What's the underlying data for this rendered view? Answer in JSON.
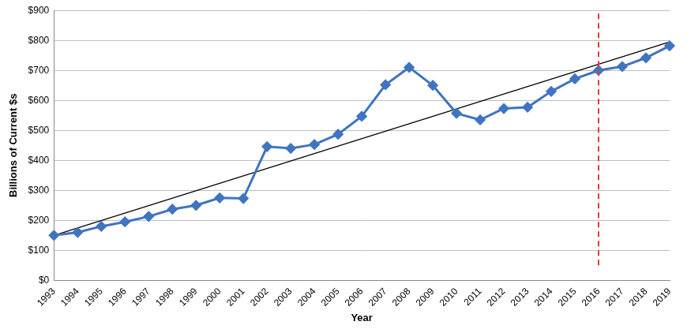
{
  "chart_data": {
    "type": "line",
    "x_label": "Year",
    "y_label": "Billions of Current $s",
    "categories": [
      "1993",
      "1994",
      "1995",
      "1996",
      "1997",
      "1998",
      "1999",
      "2000",
      "2001",
      "2002",
      "2003",
      "2004",
      "2005",
      "2006",
      "2007",
      "2008",
      "2009",
      "2010",
      "2011",
      "2012",
      "2013",
      "2014",
      "2015",
      "2016",
      "2017",
      "2018",
      "2019"
    ],
    "series": [
      {
        "color": "#3F74C0",
        "marker": "diamond",
        "line_style": "solid",
        "values": [
          150,
          160,
          180,
          195,
          213,
          237,
          250,
          275,
          273,
          446,
          440,
          453,
          487,
          547,
          652,
          710,
          650,
          557,
          535,
          573,
          577,
          630,
          672,
          700,
          713,
          742,
          782
        ]
      },
      {
        "color": "#000000",
        "marker": "none",
        "line_style": "solid",
        "values": [
          150,
          null,
          null,
          null,
          null,
          null,
          null,
          null,
          null,
          null,
          null,
          null,
          null,
          null,
          null,
          null,
          null,
          null,
          null,
          null,
          null,
          null,
          null,
          null,
          null,
          null,
          795
        ]
      }
    ],
    "ylim": [
      0,
      900
    ],
    "yticks": [
      {
        "value": 0,
        "label": "$0"
      },
      {
        "value": 100,
        "label": "$100"
      },
      {
        "value": 200,
        "label": "$200"
      },
      {
        "value": 300,
        "label": "$300"
      },
      {
        "value": 400,
        "label": "$400"
      },
      {
        "value": 500,
        "label": "$500"
      },
      {
        "value": 600,
        "label": "$600"
      },
      {
        "value": 700,
        "label": "$700"
      },
      {
        "value": 800,
        "label": "$800"
      },
      {
        "value": 900,
        "label": "$900"
      }
    ],
    "grid": true,
    "annotations": [
      {
        "type": "vline",
        "x": "2016",
        "y_from": 50,
        "y_to": 900,
        "color": "#E03A30",
        "line_style": "dashed"
      }
    ]
  }
}
